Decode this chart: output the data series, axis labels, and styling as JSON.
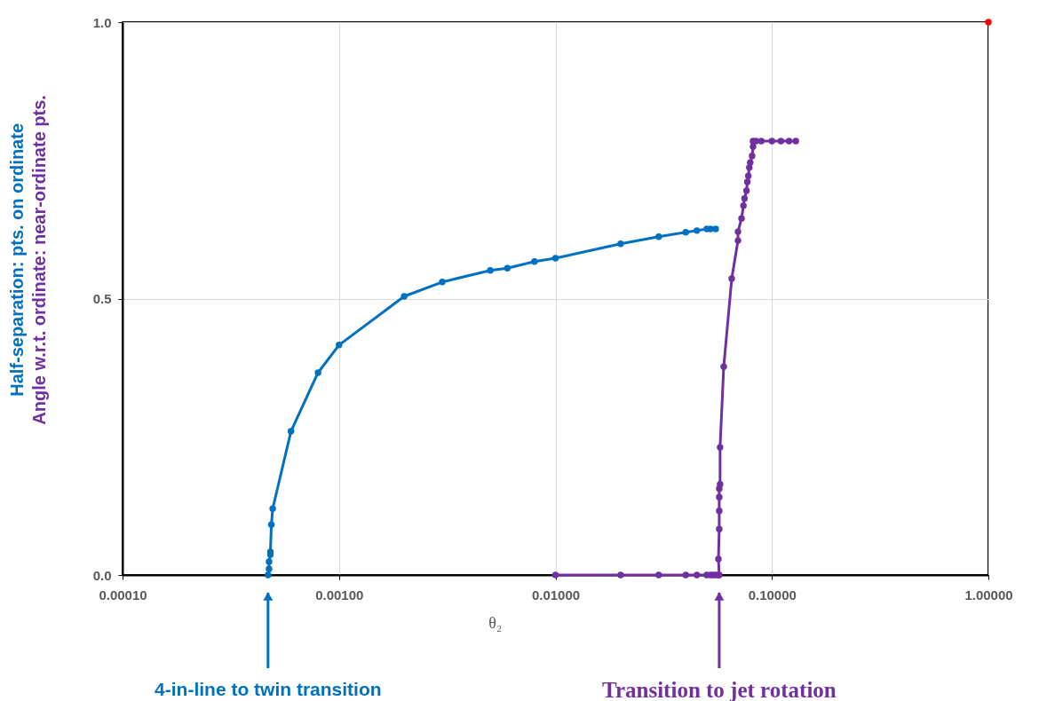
{
  "chart_data": {
    "type": "line",
    "xlabel": "θ₂",
    "log": "x",
    "grid": true,
    "marker": "circle",
    "legend": false,
    "xlim": [
      0.0001,
      1
    ],
    "xticks": [
      {
        "value": 0.0001,
        "label": "0.00010"
      },
      {
        "value": 0.001,
        "label": "0.00100"
      },
      {
        "value": 0.01,
        "label": "0.01000"
      },
      {
        "value": 0.1,
        "label": "0.10000"
      },
      {
        "value": 1,
        "label": "1.00000"
      }
    ],
    "ylim": [
      0,
      1
    ],
    "yticks": [
      {
        "value": 0,
        "label": "0.0"
      },
      {
        "value": 0.5,
        "label": "0.5"
      },
      {
        "value": 1,
        "label": "1.0"
      }
    ],
    "series": [
      {
        "name": "Half-separation: pts. on ordinate",
        "color": "#0070c0",
        "x": [
          0.00047,
          0.000475,
          0.000475,
          0.000482,
          0.000482,
          0.000487,
          0.000494,
          0.0006,
          0.0008,
          0.001,
          0.002,
          0.003,
          0.005,
          0.006,
          0.008,
          0.01,
          0.02,
          0.03,
          0.04,
          0.045,
          0.05,
          0.052,
          0.055
        ],
        "values": [
          0,
          0.011,
          0.024,
          0.037,
          0.042,
          0.091,
          0.12,
          0.26,
          0.366,
          0.416,
          0.504,
          0.53,
          0.551,
          0.555,
          0.567,
          0.573,
          0.599,
          0.612,
          0.62,
          0.623,
          0.626,
          0.626,
          0.626
        ]
      },
      {
        "name": "Angle w.r.t. ordinate: near-ordinate pts.",
        "color": "#7030a0",
        "x": [
          0.01,
          0.02,
          0.03,
          0.04,
          0.045,
          0.05,
          0.052,
          0.0536,
          0.055,
          0.0566,
          0.0571,
          0.0566,
          0.0571,
          0.0571,
          0.0571,
          0.0571,
          0.0576,
          0.0576,
          0.0599,
          0.0652,
          0.0697,
          0.0697,
          0.0724,
          0.0739,
          0.0747,
          0.0763,
          0.077,
          0.0778,
          0.0786,
          0.0794,
          0.081,
          0.0818,
          0.0818,
          0.0843,
          0.0893,
          0.1,
          0.11,
          0.12,
          0.129
        ],
        "values": [
          0,
          0,
          0,
          0,
          0,
          0,
          0,
          0,
          0,
          0,
          0,
          0.029,
          0.083,
          0.116,
          0.141,
          0.156,
          0.164,
          0.231,
          0.377,
          0.536,
          0.605,
          0.621,
          0.645,
          0.668,
          0.681,
          0.695,
          0.711,
          0.722,
          0.737,
          0.746,
          0.758,
          0.775,
          0.785,
          0.785,
          0.785,
          0.785,
          0.785,
          0.785,
          0.785
        ]
      },
      {
        "type": "scatter",
        "color": "#ff0000",
        "x": [
          1
        ],
        "values": [
          1
        ]
      }
    ],
    "annotations": [
      "4-in-line to twin transition",
      "Transition to jet rotation"
    ]
  }
}
